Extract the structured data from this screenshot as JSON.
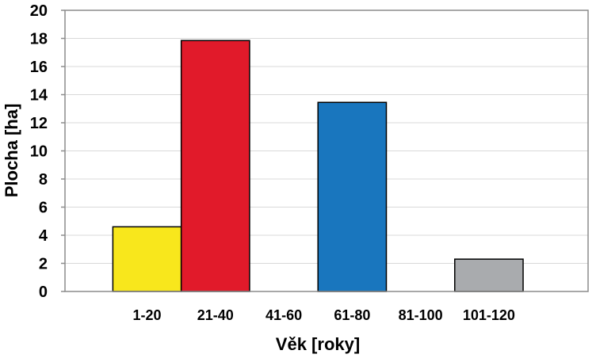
{
  "chart_data": {
    "type": "bar",
    "categories": [
      "1-20",
      "21-40",
      "41-60",
      "61-80",
      "81-100",
      "101-120"
    ],
    "values": [
      4.6,
      17.85,
      0,
      13.45,
      0,
      2.3
    ],
    "colors": [
      "#f8e71c",
      "#e11a2a",
      "#ffffff",
      "#1976be",
      "#ffffff",
      "#a9abae"
    ],
    "xlabel": "Věk [roky]",
    "ylabel": "Plocha [ha]",
    "ylim": [
      0,
      20
    ],
    "yticks": [
      "0",
      "2",
      "4",
      "6",
      "8",
      "10",
      "12",
      "14",
      "16",
      "18",
      "20"
    ],
    "grid": true
  }
}
